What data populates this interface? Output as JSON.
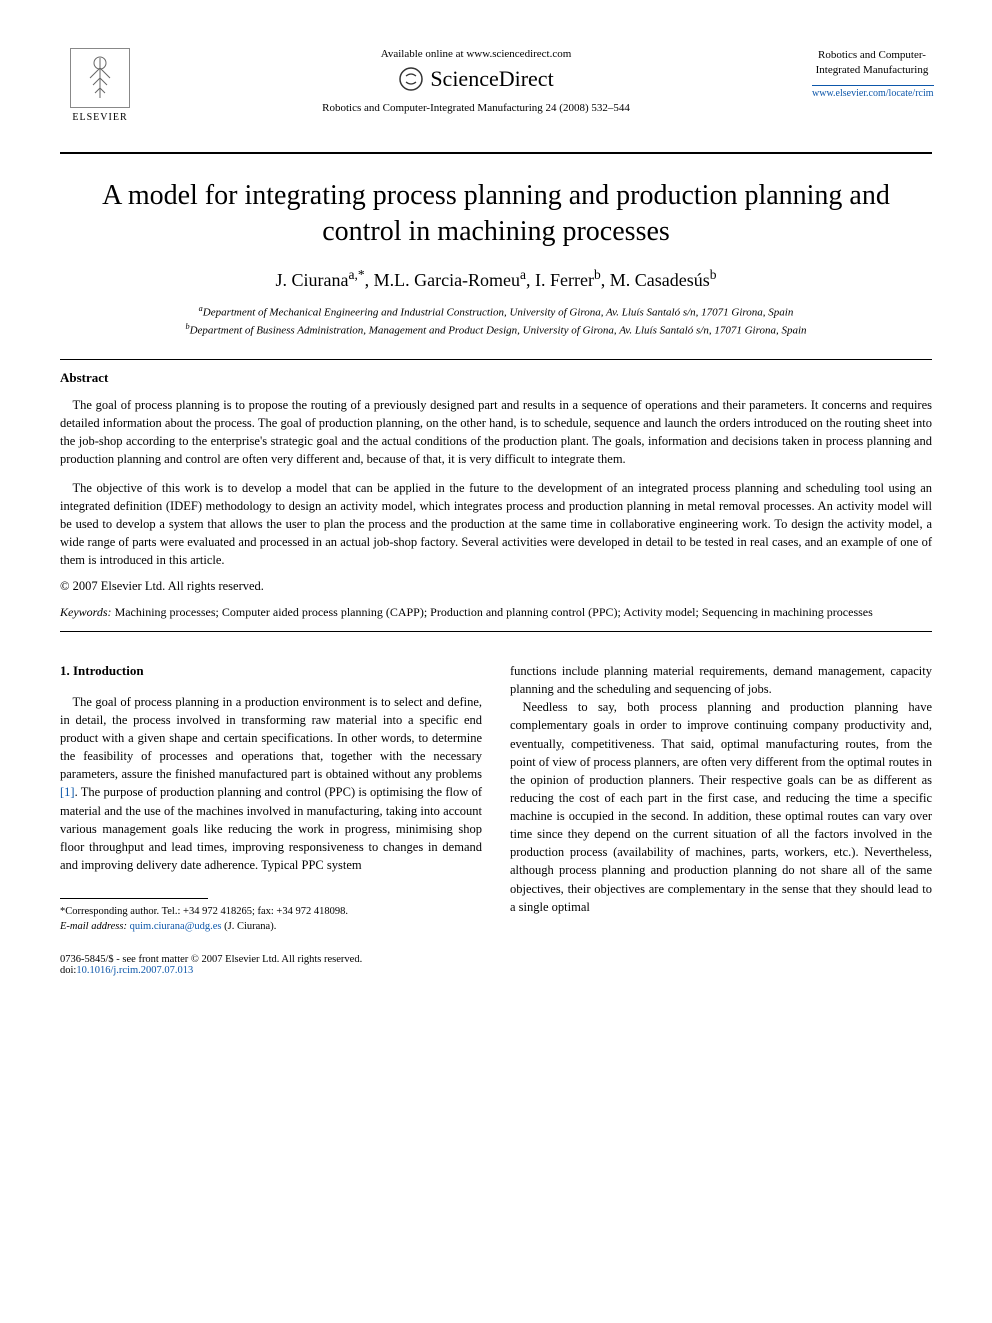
{
  "header": {
    "elsevier_label": "ELSEVIER",
    "available_text": "Available online at www.sciencedirect.com",
    "sciencedirect_text": "ScienceDirect",
    "journal_ref": "Robotics and Computer-Integrated Manufacturing 24 (2008) 532–544",
    "journal_box_title": "Robotics and Computer-Integrated Manufacturing",
    "journal_url": "www.elsevier.com/locate/rcim"
  },
  "title": "A model for integrating process planning and production planning and control in machining processes",
  "authors_html": "J. Ciurana<sup>a,*</sup>, M.L. Garcia-Romeu<sup>a</sup>, I. Ferrer<sup>b</sup>, M. Casadesús<sup>b</sup>",
  "affiliations": {
    "a": "Department of Mechanical Engineering and Industrial Construction, University of Girona, Av. Lluís Santaló s/n, 17071 Girona, Spain",
    "b": "Department of Business Administration, Management and Product Design, University of Girona, Av. Lluís Santaló s/n, 17071 Girona, Spain"
  },
  "abstract": {
    "heading": "Abstract",
    "para1": "The goal of process planning is to propose the routing of a previously designed part and results in a sequence of operations and their parameters. It concerns and requires detailed information about the process. The goal of production planning, on the other hand, is to schedule, sequence and launch the orders introduced on the routing sheet into the job-shop according to the enterprise's strategic goal and the actual conditions of the production plant. The goals, information and decisions taken in process planning and production planning and control are often very different and, because of that, it is very difficult to integrate them.",
    "para2": "The objective of this work is to develop a model that can be applied in the future to the development of an integrated process planning and scheduling tool using an integrated definition (IDEF) methodology to design an activity model, which integrates process and production planning in metal removal processes. An activity model will be used to develop a system that allows the user to plan the process and the production at the same time in collaborative engineering work. To design the activity model, a wide range of parts were evaluated and processed in an actual job-shop factory. Several activities were developed in detail to be tested in real cases, and an example of one of them is introduced in this article.",
    "copyright": "© 2007 Elsevier Ltd. All rights reserved."
  },
  "keywords": {
    "label": "Keywords:",
    "text": "Machining processes; Computer aided process planning (CAPP); Production and planning control (PPC); Activity model; Sequencing in machining processes"
  },
  "section1": {
    "heading": "1. Introduction",
    "col1_para1_pre": "The goal of process planning in a production environment is to select and define, in detail, the process involved in transforming raw material into a specific end product with a given shape and certain specifications. In other words, to determine the feasibility of processes and operations that, together with the necessary parameters, assure the finished manufactured part is obtained without any problems ",
    "col1_ref": "[1]",
    "col1_para1_post": ". The purpose of production planning and control (PPC) is optimising the flow of material and the use of the machines involved in manufacturing, taking into account various management goals like reducing the work in progress, minimising shop floor throughput and lead times, improving responsiveness to changes in demand and improving delivery date adherence. Typical PPC system",
    "col2_para1": "functions include planning material requirements, demand management, capacity planning and the scheduling and sequencing of jobs.",
    "col2_para2": "Needless to say, both process planning and production planning have complementary goals in order to improve continuing company productivity and, eventually, competitiveness. That said, optimal manufacturing routes, from the point of view of process planners, are often very different from the optimal routes in the opinion of production planners. Their respective goals can be as different as reducing the cost of each part in the first case, and reducing the time a specific machine is occupied in the second. In addition, these optimal routes can vary over time since they depend on the current situation of all the factors involved in the production process (availability of machines, parts, workers, etc.). Nevertheless, although process planning and production planning do not share all of the same objectives, their objectives are complementary in the sense that they should lead to a single optimal"
  },
  "footnote": {
    "corresponding": "*Corresponding author. Tel.: +34 972 418265; fax: +34 972 418098.",
    "email_label": "E-mail address:",
    "email": "quim.ciurana@udg.es",
    "email_name": "(J. Ciurana)."
  },
  "footer": {
    "front_matter": "0736-5845/$ - see front matter © 2007 Elsevier Ltd. All rights reserved.",
    "doi_label": "doi:",
    "doi": "10.1016/j.rcim.2007.07.013"
  },
  "colors": {
    "link": "#0d57aa",
    "text": "#000000",
    "bg": "#ffffff"
  }
}
